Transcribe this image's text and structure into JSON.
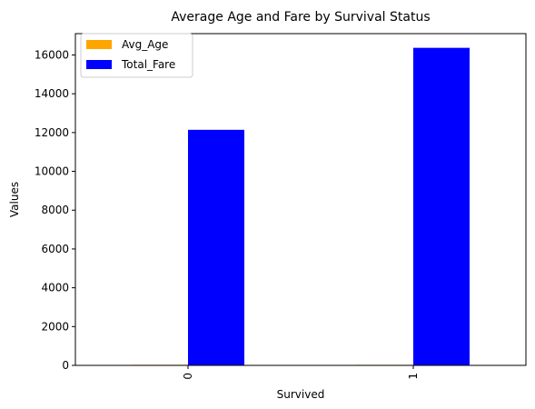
{
  "chart_data": {
    "type": "bar",
    "title": "Average Age and Fare by Survival Status",
    "xlabel": "Survived",
    "ylabel": "Values",
    "categories": [
      "0",
      "1"
    ],
    "series": [
      {
        "name": "Avg_Age",
        "color": "#ffa500",
        "values": [
          30.6,
          28.3
        ]
      },
      {
        "name": "Total_Fare",
        "color": "#0000ff",
        "values": [
          12142,
          16368
        ]
      }
    ],
    "ylim": [
      0,
      17100
    ],
    "yticks": [
      0,
      2000,
      4000,
      6000,
      8000,
      10000,
      12000,
      14000,
      16000
    ],
    "legend_position": "top-left",
    "grid": false
  }
}
